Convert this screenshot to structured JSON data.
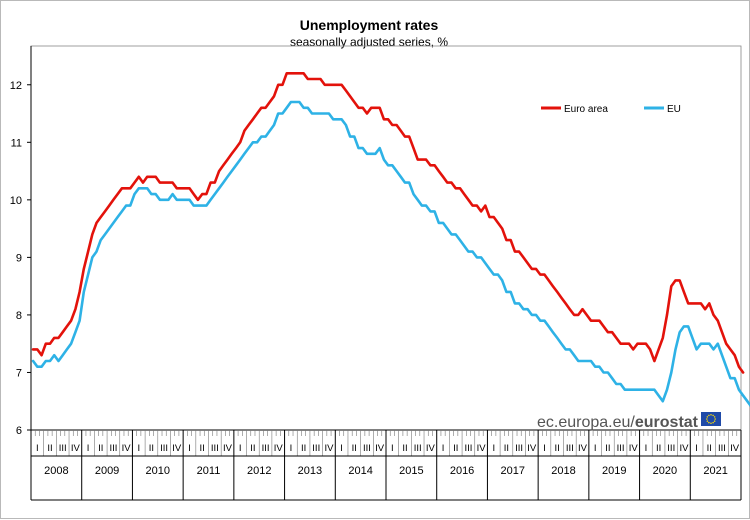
{
  "chart_data": {
    "type": "line",
    "title": "Unemployment rates",
    "subtitle": "seasonally adjusted series, %",
    "xlabel": "",
    "ylabel": "",
    "ylim": [
      6,
      12.5
    ],
    "yticks": [
      "6",
      "7",
      "8",
      "9",
      "10",
      "11",
      "12"
    ],
    "quarter_labels": [
      "I",
      "II",
      "III",
      "IV"
    ],
    "years": [
      "2008",
      "2009",
      "2010",
      "2011",
      "2012",
      "2013",
      "2014",
      "2015",
      "2016",
      "2017",
      "2018",
      "2019",
      "2020",
      "2021"
    ],
    "x_unit": "month (Jan 2008 = 0)",
    "series": [
      {
        "name": "Euro area",
        "color": "#e3120b",
        "values": [
          7.4,
          7.4,
          7.3,
          7.5,
          7.5,
          7.6,
          7.6,
          7.7,
          7.8,
          7.9,
          8.1,
          8.4,
          8.8,
          9.1,
          9.4,
          9.6,
          9.7,
          9.8,
          9.9,
          10.0,
          10.1,
          10.2,
          10.2,
          10.2,
          10.3,
          10.4,
          10.3,
          10.4,
          10.4,
          10.4,
          10.3,
          10.3,
          10.3,
          10.3,
          10.2,
          10.2,
          10.2,
          10.2,
          10.1,
          10.0,
          10.1,
          10.1,
          10.3,
          10.3,
          10.5,
          10.6,
          10.7,
          10.8,
          10.9,
          11.0,
          11.2,
          11.3,
          11.4,
          11.5,
          11.6,
          11.6,
          11.7,
          11.8,
          12.0,
          12.0,
          12.2,
          12.2,
          12.2,
          12.2,
          12.2,
          12.1,
          12.1,
          12.1,
          12.1,
          12.0,
          12.0,
          12.0,
          12.0,
          12.0,
          11.9,
          11.8,
          11.7,
          11.6,
          11.6,
          11.5,
          11.6,
          11.6,
          11.6,
          11.4,
          11.4,
          11.3,
          11.3,
          11.2,
          11.1,
          11.1,
          10.9,
          10.7,
          10.7,
          10.7,
          10.6,
          10.6,
          10.5,
          10.4,
          10.3,
          10.3,
          10.2,
          10.2,
          10.1,
          10.0,
          9.9,
          9.9,
          9.8,
          9.9,
          9.7,
          9.7,
          9.6,
          9.5,
          9.3,
          9.3,
          9.1,
          9.1,
          9.0,
          8.9,
          8.8,
          8.8,
          8.7,
          8.7,
          8.6,
          8.5,
          8.4,
          8.3,
          8.2,
          8.1,
          8.0,
          8.0,
          8.1,
          8.0,
          7.9,
          7.9,
          7.9,
          7.8,
          7.7,
          7.7,
          7.6,
          7.5,
          7.5,
          7.5,
          7.4,
          7.5,
          7.5,
          7.5,
          7.4,
          7.2,
          7.4,
          7.6,
          8.0,
          8.5,
          8.6,
          8.6,
          8.4,
          8.2,
          8.2,
          8.2,
          8.2,
          8.1,
          8.2,
          8.0,
          7.9,
          7.7,
          7.5,
          7.4,
          7.3,
          7.1,
          7.0
        ]
      },
      {
        "name": "EU",
        "color": "#2eb2e6",
        "values": [
          7.2,
          7.1,
          7.1,
          7.2,
          7.2,
          7.3,
          7.2,
          7.3,
          7.4,
          7.5,
          7.7,
          7.9,
          8.4,
          8.7,
          9.0,
          9.1,
          9.3,
          9.4,
          9.5,
          9.6,
          9.7,
          9.8,
          9.9,
          9.9,
          10.1,
          10.2,
          10.2,
          10.2,
          10.1,
          10.1,
          10.0,
          10.0,
          10.0,
          10.1,
          10.0,
          10.0,
          10.0,
          10.0,
          9.9,
          9.9,
          9.9,
          9.9,
          10.0,
          10.1,
          10.2,
          10.3,
          10.4,
          10.5,
          10.6,
          10.7,
          10.8,
          10.9,
          11.0,
          11.0,
          11.1,
          11.1,
          11.2,
          11.3,
          11.5,
          11.5,
          11.6,
          11.7,
          11.7,
          11.7,
          11.6,
          11.6,
          11.5,
          11.5,
          11.5,
          11.5,
          11.5,
          11.4,
          11.4,
          11.4,
          11.3,
          11.1,
          11.1,
          10.9,
          10.9,
          10.8,
          10.8,
          10.8,
          10.9,
          10.7,
          10.6,
          10.6,
          10.5,
          10.4,
          10.3,
          10.3,
          10.1,
          10.0,
          9.9,
          9.9,
          9.8,
          9.8,
          9.6,
          9.6,
          9.5,
          9.4,
          9.4,
          9.3,
          9.2,
          9.1,
          9.1,
          9.0,
          9.0,
          8.9,
          8.8,
          8.7,
          8.7,
          8.6,
          8.4,
          8.4,
          8.2,
          8.2,
          8.1,
          8.1,
          8.0,
          8.0,
          7.9,
          7.9,
          7.8,
          7.7,
          7.6,
          7.5,
          7.4,
          7.4,
          7.3,
          7.2,
          7.2,
          7.2,
          7.2,
          7.1,
          7.1,
          7.0,
          7.0,
          6.9,
          6.8,
          6.8,
          6.7,
          6.7,
          6.7,
          6.7,
          6.7,
          6.7,
          6.7,
          6.7,
          6.6,
          6.5,
          6.7,
          7.0,
          7.4,
          7.7,
          7.8,
          7.8,
          7.6,
          7.4,
          7.5,
          7.5,
          7.5,
          7.4,
          7.5,
          7.3,
          7.1,
          6.9,
          6.9,
          6.7,
          6.6,
          6.5,
          6.4
        ]
      }
    ],
    "legend_position": "top-right",
    "source": {
      "prefix": "ec.europa.eu/",
      "brand": "eurostat",
      "flag_color": "#1f4aa8"
    }
  }
}
